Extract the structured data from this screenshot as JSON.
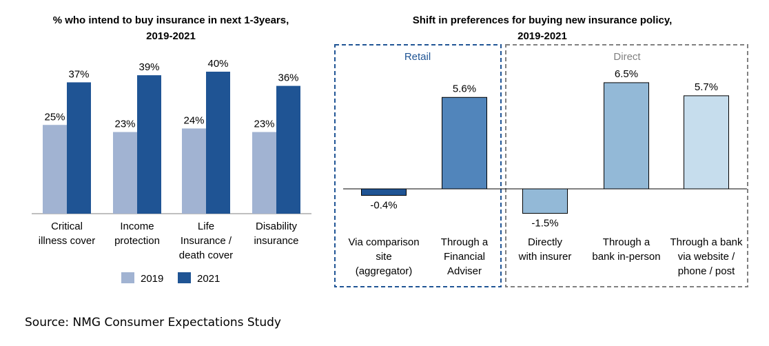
{
  "chart_data": [
    {
      "type": "bar",
      "title": [
        "% who intend to buy insurance in next 1-3years,",
        "2019-2021"
      ],
      "categories": [
        [
          "Critical",
          "illness cover"
        ],
        [
          "Income",
          "protection"
        ],
        [
          "Life",
          "Insurance /",
          "death cover"
        ],
        [
          "Disability",
          "insurance"
        ]
      ],
      "series": [
        {
          "name": "2019",
          "values": [
            25,
            23,
            24,
            23
          ],
          "labels": [
            "25%",
            "23%",
            "24%",
            "23%"
          ],
          "color": "#a1b3d2"
        },
        {
          "name": "2021",
          "values": [
            37,
            39,
            40,
            36
          ],
          "labels": [
            "37%",
            "39%",
            "40%",
            "36%"
          ],
          "color": "#1f5494"
        }
      ],
      "legend": "bottom"
    },
    {
      "type": "bar",
      "title": [
        "Shift in preferences for buying new insurance policy,",
        "2019-2021"
      ],
      "groups": [
        {
          "name": "Retail",
          "color": "#1f5494"
        },
        {
          "name": "Direct",
          "color": "#808080"
        }
      ],
      "categories": [
        [
          "Via comparison",
          "site",
          "(aggregator)"
        ],
        [
          "Through a",
          "Financial",
          "Adviser"
        ],
        [
          "Directly",
          "with insurer"
        ],
        [
          "Through a",
          "bank in-person"
        ],
        [
          "Through a bank",
          "via website /",
          "phone / post"
        ]
      ],
      "values": [
        -0.4,
        5.6,
        -1.5,
        6.5,
        5.7
      ],
      "labels": [
        "-0.4%",
        "5.6%",
        "-1.5%",
        "6.5%",
        "5.7%"
      ],
      "colors": [
        "#1f5494",
        "#5185bb",
        "#93b9d7",
        "#93b9d7",
        "#c6dded"
      ]
    }
  ],
  "source": "Source: NMG Consumer Expectations Study"
}
